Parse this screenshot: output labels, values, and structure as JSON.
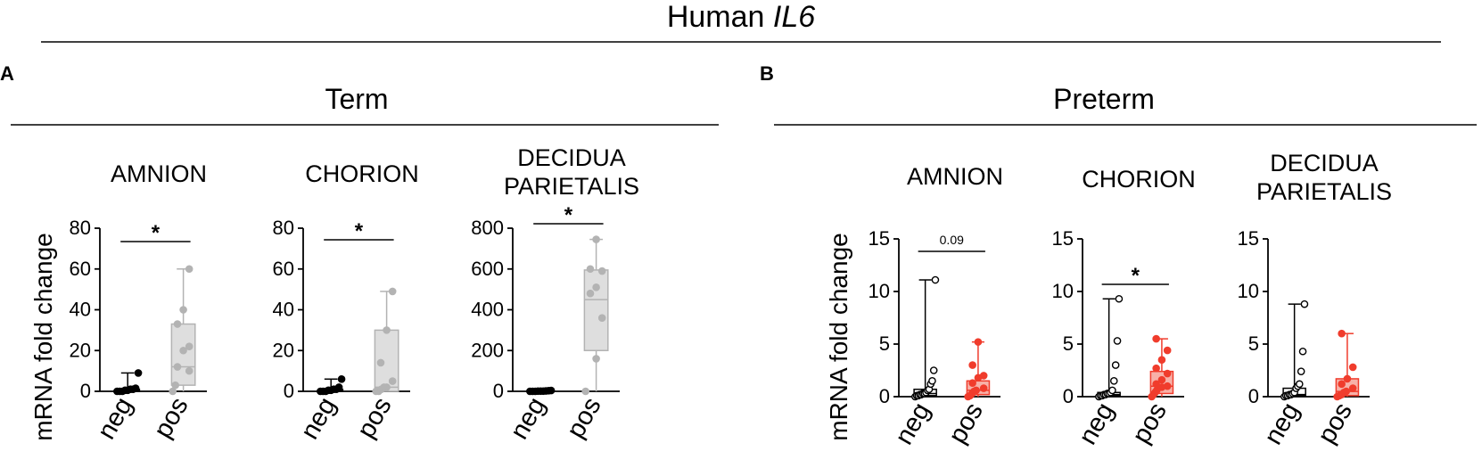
{
  "figure": {
    "title_prefix": "Human ",
    "title_gene": "IL6",
    "panels": [
      {
        "letter": "A",
        "heading": "Term"
      },
      {
        "letter": "B",
        "heading": "Preterm"
      }
    ],
    "ylabel": "mRNA fold change"
  },
  "colors": {
    "black": "#000000",
    "gray": "#b3b3b3",
    "gray_box": "#dedede",
    "red": "#f03c2c",
    "red_box": "#f7b1a8"
  },
  "chart_data": [
    {
      "id": "term-amnion",
      "type": "box",
      "panel": "A",
      "title_lines": [
        "AMNION"
      ],
      "categories": [
        "neg",
        "pos"
      ],
      "ylim": [
        0,
        80
      ],
      "yticks": [
        0,
        20,
        40,
        60,
        80
      ],
      "significance": "*",
      "groups": [
        {
          "name": "neg",
          "style": "black-filled",
          "min": 0,
          "q1": 0,
          "median": 0.5,
          "q3": 1,
          "max": 9,
          "points": [
            0,
            0,
            0,
            0.5,
            0.5,
            1,
            1,
            1.5,
            9
          ]
        },
        {
          "name": "pos",
          "style": "gray",
          "min": 0,
          "q1": 3,
          "median": 12,
          "q3": 33,
          "max": 60,
          "points": [
            0,
            3,
            10,
            12,
            20,
            22,
            33,
            40,
            60
          ]
        }
      ]
    },
    {
      "id": "term-chorion",
      "type": "box",
      "panel": "A",
      "title_lines": [
        "CHORION"
      ],
      "categories": [
        "neg",
        "pos"
      ],
      "ylim": [
        0,
        80
      ],
      "yticks": [
        0,
        20,
        40,
        60,
        80
      ],
      "significance": "*",
      "groups": [
        {
          "name": "neg",
          "style": "black-filled",
          "min": 0,
          "q1": 0,
          "median": 0.5,
          "q3": 1,
          "max": 6,
          "points": [
            0,
            0,
            0,
            0.5,
            0.5,
            1,
            1,
            2,
            6
          ]
        },
        {
          "name": "pos",
          "style": "gray",
          "min": 0,
          "q1": 0,
          "median": 2,
          "q3": 30,
          "max": 49,
          "points": [
            0,
            0,
            1,
            2,
            2,
            5,
            14,
            30,
            49
          ]
        }
      ]
    },
    {
      "id": "term-decidua",
      "type": "box",
      "panel": "A",
      "title_lines": [
        "DECIDUA",
        "PARIETALIS"
      ],
      "categories": [
        "neg",
        "pos"
      ],
      "ylim": [
        0,
        800
      ],
      "yticks": [
        0,
        200,
        400,
        600,
        800
      ],
      "significance": "*",
      "groups": [
        {
          "name": "neg",
          "style": "black-filled",
          "min": 0,
          "q1": 0,
          "median": 0,
          "q3": 2,
          "max": 4,
          "points": [
            0,
            0,
            0,
            1,
            1,
            1,
            2,
            3,
            4
          ]
        },
        {
          "name": "pos",
          "style": "gray",
          "min": 0,
          "q1": 200,
          "median": 450,
          "q3": 595,
          "max": 745,
          "points": [
            0,
            160,
            360,
            480,
            510,
            590,
            600,
            745
          ]
        }
      ]
    },
    {
      "id": "preterm-amnion",
      "type": "box",
      "panel": "B",
      "title_lines": [
        "AMNION"
      ],
      "categories": [
        "neg",
        "pos"
      ],
      "ylim": [
        0,
        15
      ],
      "yticks": [
        0,
        5,
        10,
        15
      ],
      "significance": "0.09",
      "groups": [
        {
          "name": "neg",
          "style": "black-open",
          "min": 0,
          "q1": 0.1,
          "median": 0.3,
          "q3": 0.7,
          "max": 11.1,
          "points": [
            0,
            0.1,
            0.1,
            0.2,
            0.2,
            0.3,
            0.3,
            0.4,
            0.6,
            0.7,
            1.2,
            1.5,
            2.5,
            11.1
          ]
        },
        {
          "name": "pos",
          "style": "red",
          "min": 0,
          "q1": 0.2,
          "median": 0.6,
          "q3": 1.5,
          "max": 5.2,
          "points": [
            0,
            0.1,
            0.3,
            0.5,
            0.6,
            0.8,
            1.3,
            1.8,
            2.0,
            3.0,
            5.2
          ]
        }
      ]
    },
    {
      "id": "preterm-chorion",
      "type": "box",
      "panel": "B",
      "title_lines": [
        "CHORION"
      ],
      "categories": [
        "neg",
        "pos"
      ],
      "ylim": [
        0,
        15
      ],
      "yticks": [
        0,
        5,
        10,
        15
      ],
      "significance": "*",
      "groups": [
        {
          "name": "neg",
          "style": "black-open",
          "min": 0,
          "q1": 0.1,
          "median": 0.2,
          "q3": 0.4,
          "max": 9.3,
          "points": [
            0,
            0.1,
            0.1,
            0.2,
            0.2,
            0.3,
            0.3,
            0.4,
            0.6,
            1.5,
            3.0,
            5.3,
            9.3
          ]
        },
        {
          "name": "pos",
          "style": "red",
          "min": 0,
          "q1": 0.3,
          "median": 1.0,
          "q3": 2.4,
          "max": 5.5,
          "points": [
            0,
            0.2,
            0.4,
            0.6,
            0.9,
            1.0,
            1.2,
            1.6,
            2.2,
            2.7,
            3.5,
            4.4,
            5.5
          ]
        }
      ]
    },
    {
      "id": "preterm-decidua",
      "type": "box",
      "panel": "B",
      "title_lines": [
        "DECIDUA",
        "PARIETALIS"
      ],
      "categories": [
        "neg",
        "pos"
      ],
      "ylim": [
        0,
        15
      ],
      "yticks": [
        0,
        5,
        10,
        15
      ],
      "significance": "",
      "groups": [
        {
          "name": "neg",
          "style": "black-open",
          "min": 0,
          "q1": 0.1,
          "median": 0.2,
          "q3": 0.8,
          "max": 8.8,
          "points": [
            0,
            0.1,
            0.1,
            0.2,
            0.2,
            0.3,
            0.4,
            0.8,
            1.0,
            1.2,
            2.4,
            4.3,
            8.8
          ]
        },
        {
          "name": "pos",
          "style": "red",
          "min": 0,
          "q1": 0.1,
          "median": 0.5,
          "q3": 1.7,
          "max": 6.0,
          "points": [
            0,
            0.1,
            0.2,
            0.4,
            0.5,
            0.8,
            1.2,
            1.7,
            2.8,
            6.0
          ]
        }
      ]
    }
  ]
}
